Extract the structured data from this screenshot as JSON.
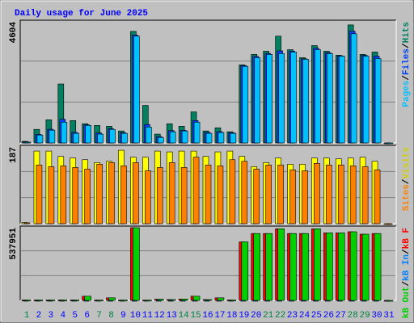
{
  "chart_data": [
    {
      "type": "bar",
      "title": "Daily usage for June 2025",
      "ylim": [
        0,
        4604
      ],
      "yticks": [
        4604
      ],
      "series": [
        {
          "name": "Hits",
          "color": "#008060",
          "values": [
            60,
            515,
            880,
            2240,
            850,
            730,
            665,
            635,
            455,
            4240,
            1425,
            335,
            730,
            635,
            1180,
            455,
            575,
            425,
            2970,
            3365,
            3485,
            4060,
            3545,
            3240,
            3700,
            3485,
            3335,
            4485,
            3365,
            3455,
            0
          ]
        },
        {
          "name": "Files",
          "color": "#0040ff",
          "values": [
            40,
            330,
            520,
            900,
            400,
            690,
            380,
            540,
            390,
            4100,
            700,
            240,
            470,
            480,
            850,
            400,
            430,
            390,
            2940,
            3290,
            3400,
            3500,
            3490,
            3200,
            3600,
            3430,
            3310,
            4250,
            3330,
            3300,
            0
          ]
        },
        {
          "name": "Pages",
          "color": "#00c0ff",
          "values": [
            30,
            300,
            485,
            790,
            365,
            665,
            335,
            515,
            365,
            4060,
            605,
            210,
            425,
            455,
            790,
            365,
            395,
            365,
            2910,
            3240,
            3365,
            3395,
            3455,
            3180,
            3545,
            3395,
            3300,
            4150,
            3300,
            3210,
            0
          ]
        }
      ]
    },
    {
      "type": "bar",
      "ylim": [
        0,
        187
      ],
      "yticks": [
        187
      ],
      "series": [
        {
          "name": "Visits",
          "color": "#ffff00",
          "text_color": "#d0d000",
          "values": [
            3,
            177,
            177,
            164,
            160,
            156,
            149,
            152,
            179,
            162,
            162,
            177,
            175,
            177,
            177,
            164,
            175,
            177,
            164,
            139,
            149,
            160,
            145,
            145,
            160,
            160,
            158,
            160,
            162,
            152,
            0
          ]
        },
        {
          "name": "Sites",
          "color": "#ff8000",
          "values": [
            2,
            143,
            139,
            141,
            137,
            133,
            145,
            149,
            141,
            149,
            129,
            137,
            149,
            137,
            162,
            143,
            141,
            156,
            152,
            133,
            143,
            143,
            131,
            129,
            147,
            143,
            143,
            141,
            139,
            131,
            0
          ]
        }
      ]
    },
    {
      "type": "bar",
      "ylim": [
        0,
        537951
      ],
      "yticks": [
        537951
      ],
      "categories": [
        "1",
        "2",
        "3",
        "4",
        "5",
        "6",
        "7",
        "8",
        "9",
        "10",
        "11",
        "12",
        "13",
        "14",
        "15",
        "16",
        "17",
        "18",
        "19",
        "20",
        "21",
        "22",
        "23",
        "24",
        "25",
        "26",
        "27",
        "28",
        "29",
        "30",
        "31"
      ],
      "category_colors": [
        "#008040",
        "#0000ff",
        "#0000ff",
        "#0000ff",
        "#0000ff",
        "#0000ff",
        "#008040",
        "#008040",
        "#0000ff",
        "#0000ff",
        "#0000ff",
        "#0000ff",
        "#0000ff",
        "#008040",
        "#008040",
        "#0000ff",
        "#0000ff",
        "#0000ff",
        "#0000ff",
        "#0000ff",
        "#008040",
        "#008040",
        "#0000ff",
        "#0000ff",
        "#0000ff",
        "#0000ff",
        "#0000ff",
        "#008040",
        "#008040",
        "#0000ff",
        "#0000ff"
      ],
      "series": [
        {
          "name": "kB F",
          "color": "#ff0000",
          "values": [
            3000,
            3000,
            3000,
            3000,
            3000,
            31000,
            2000,
            19000,
            2000,
            537951,
            2000,
            9000,
            6000,
            10000,
            31000,
            6000,
            19000,
            3000,
            433000,
            495000,
            495000,
            530000,
            495000,
            495000,
            530000,
            500000,
            500000,
            508000,
            490000,
            495000,
            0
          ]
        },
        {
          "name": "kB In",
          "color": "#0080ff",
          "values": [
            0,
            0,
            0,
            0,
            0,
            0,
            0,
            0,
            0,
            0,
            0,
            0,
            0,
            0,
            0,
            0,
            0,
            0,
            0,
            0,
            0,
            0,
            0,
            0,
            0,
            0,
            0,
            0,
            0,
            0,
            0
          ]
        },
        {
          "name": "kB Out",
          "color": "#00d000",
          "values": [
            3000,
            3000,
            3000,
            3000,
            3000,
            31000,
            2000,
            19000,
            2000,
            537951,
            2000,
            9000,
            6000,
            10000,
            31000,
            6000,
            19000,
            3000,
            433000,
            495000,
            495000,
            530000,
            495000,
            495000,
            530000,
            500000,
            500000,
            508000,
            490000,
            495000,
            0
          ]
        }
      ]
    }
  ]
}
